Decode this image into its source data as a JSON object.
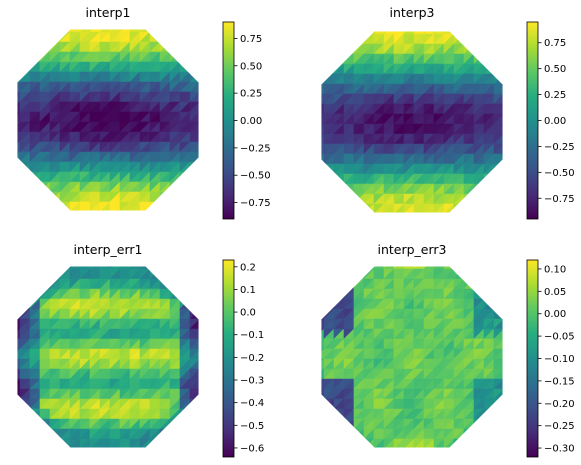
{
  "chart_data": [
    {
      "type": "heatmap",
      "title": "interp1",
      "colormap": "viridis",
      "grid": false,
      "axes_visible": false,
      "shape": "octagon",
      "colorbar": {
        "min": -0.9,
        "max": 0.9,
        "ticks": [
          0.75,
          0.5,
          0.25,
          0.0,
          -0.25,
          -0.5,
          -0.75
        ],
        "tick_labels": [
          "0.75",
          "0.50",
          "0.25",
          "0.00",
          "−0.25",
          "−0.50",
          "−0.75"
        ]
      },
      "pattern": "cos(pi*y)",
      "description_values": {
        "center_row": -0.85,
        "upper_lower_bands": 0.85,
        "edges": 0.0
      }
    },
    {
      "type": "heatmap",
      "title": "interp3",
      "colormap": "viridis",
      "grid": false,
      "axes_visible": false,
      "shape": "octagon",
      "colorbar": {
        "min": -0.95,
        "max": 0.95,
        "ticks": [
          0.75,
          0.5,
          0.25,
          0.0,
          -0.25,
          -0.5,
          -0.75
        ],
        "tick_labels": [
          "0.75",
          "0.50",
          "0.25",
          "0.00",
          "−0.25",
          "−0.50",
          "−0.75"
        ]
      },
      "pattern": "cos(pi*y)",
      "description_values": {
        "center_row": -0.9,
        "upper_lower_bands": 0.9,
        "edges": 0.0
      }
    },
    {
      "type": "heatmap",
      "title": "interp_err1",
      "colormap": "viridis",
      "grid": false,
      "axes_visible": false,
      "shape": "octagon",
      "colorbar": {
        "min": -0.64,
        "max": 0.23,
        "ticks": [
          0.2,
          0.1,
          0.0,
          -0.1,
          -0.2,
          -0.3,
          -0.4,
          -0.5,
          -0.6
        ],
        "tick_labels": [
          "0.2",
          "0.1",
          "0.0",
          "−0.1",
          "−0.2",
          "−0.3",
          "−0.4",
          "−0.5",
          "−0.6"
        ]
      },
      "pattern": "error_bands_1",
      "description_values": {
        "typical": -0.05,
        "max": 0.23,
        "min": -0.64
      }
    },
    {
      "type": "heatmap",
      "title": "interp_err3",
      "colormap": "viridis",
      "grid": false,
      "axes_visible": false,
      "shape": "octagon",
      "colorbar": {
        "min": -0.32,
        "max": 0.12,
        "ticks": [
          0.1,
          0.05,
          0.0,
          -0.05,
          -0.1,
          -0.15,
          -0.2,
          -0.25,
          -0.3
        ],
        "tick_labels": [
          "0.10",
          "0.05",
          "0.00",
          "−0.05",
          "−0.10",
          "−0.15",
          "−0.20",
          "−0.25",
          "−0.30"
        ]
      },
      "pattern": "error_edges_3",
      "description_values": {
        "typical": 0.0,
        "max": 0.12,
        "min": -0.32
      }
    }
  ]
}
